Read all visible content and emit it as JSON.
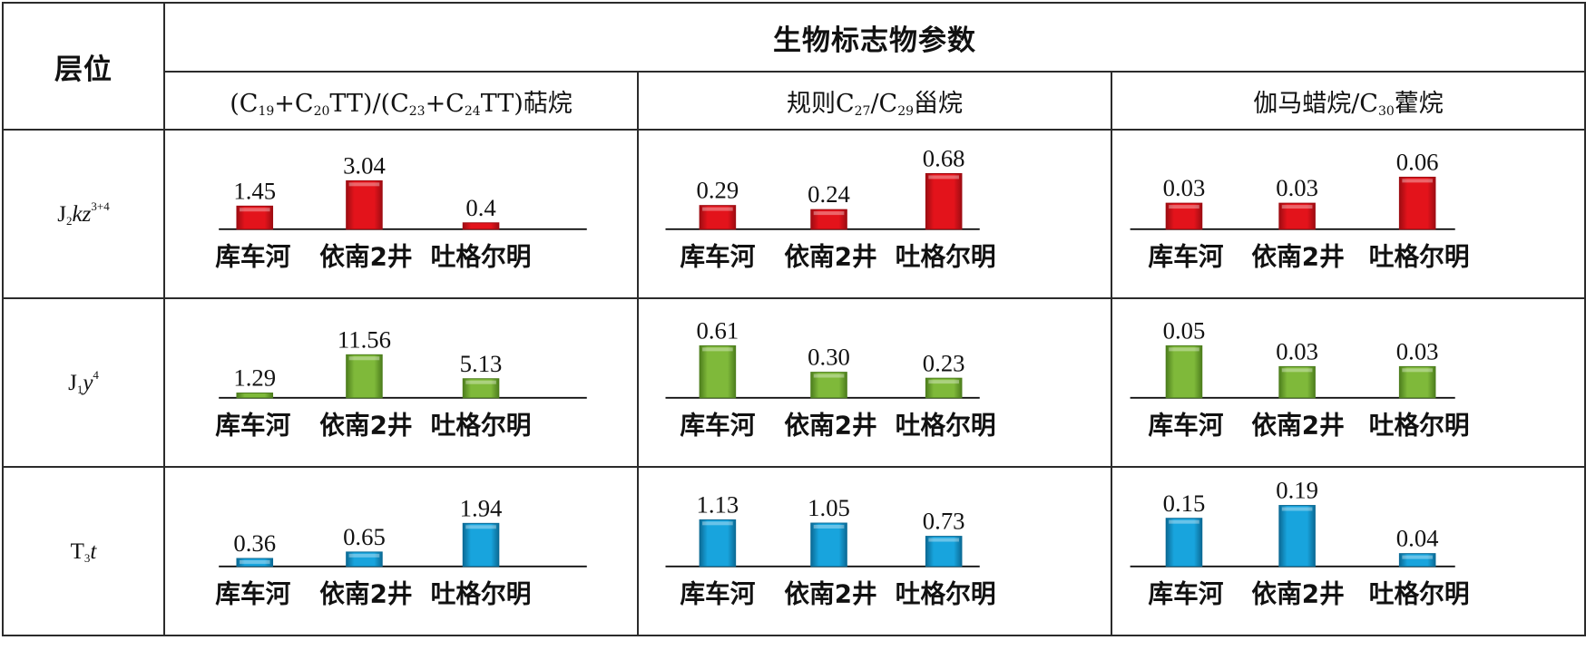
{
  "header": {
    "layer_label": "层位",
    "group_title": "生物标志物参数"
  },
  "columns": [
    {
      "key": "tricyclic_ratio",
      "label_parts": [
        "(C",
        "19",
        "+C",
        "20",
        "TT)/(C",
        "23",
        "+C",
        "24",
        "TT)萜烷"
      ]
    },
    {
      "key": "sterane_ratio",
      "label_parts": [
        "规则C",
        "27",
        "/C",
        "29",
        "甾烷"
      ]
    },
    {
      "key": "gammacerane_ratio",
      "label_parts": [
        "伽马蜡烷/C",
        "30",
        "藿烷"
      ]
    }
  ],
  "rows": [
    {
      "key": "J2kz",
      "label": {
        "main": "J",
        "sub": "2",
        "italic": "kz",
        "sup": "3+4"
      },
      "color": "#e3131b"
    },
    {
      "key": "J1y",
      "label": {
        "main": "J",
        "sub": "1",
        "italic": "y",
        "sup": "4"
      },
      "color": "#7fb93a"
    },
    {
      "key": "T3t",
      "label": {
        "main": "T",
        "sub": "3",
        "italic": "t",
        "sup": ""
      },
      "color": "#18a4dd"
    }
  ],
  "chart_data": [
    {
      "type": "bar",
      "layer": "J2kz3+4",
      "parameter": "(C19+C20TT)/(C23+C24TT)萜烷",
      "categories": [
        "库车河",
        "依南2井",
        "吐格尔明"
      ],
      "values": [
        1.45,
        3.04,
        0.4
      ],
      "labels": [
        "1.45",
        "3.04",
        "0.4"
      ],
      "color": "#e3131b"
    },
    {
      "type": "bar",
      "layer": "J2kz3+4",
      "parameter": "规则C27/C29甾烷",
      "categories": [
        "库车河",
        "依南2井",
        "吐格尔明"
      ],
      "values": [
        0.29,
        0.24,
        0.68
      ],
      "labels": [
        "0.29",
        "0.24",
        "0.68"
      ],
      "color": "#e3131b"
    },
    {
      "type": "bar",
      "layer": "J2kz3+4",
      "parameter": "伽马蜡烷/C30藿烷",
      "categories": [
        "库车河",
        "依南2井",
        "吐格尔明"
      ],
      "values": [
        0.03,
        0.03,
        0.06
      ],
      "labels": [
        "0.03",
        "0.03",
        "0.06"
      ],
      "color": "#e3131b"
    },
    {
      "type": "bar",
      "layer": "J1y4",
      "parameter": "(C19+C20TT)/(C23+C24TT)萜烷",
      "categories": [
        "库车河",
        "依南2井",
        "吐格尔明"
      ],
      "values": [
        1.29,
        11.56,
        5.13
      ],
      "labels": [
        "1.29",
        "11.56",
        "5.13"
      ],
      "color": "#7fb93a"
    },
    {
      "type": "bar",
      "layer": "J1y4",
      "parameter": "规则C27/C29甾烷",
      "categories": [
        "库车河",
        "依南2井",
        "吐格尔明"
      ],
      "values": [
        0.61,
        0.3,
        0.23
      ],
      "labels": [
        "0.61",
        "0.30",
        "0.23"
      ],
      "color": "#7fb93a"
    },
    {
      "type": "bar",
      "layer": "J1y4",
      "parameter": "伽马蜡烷/C30藿烷",
      "categories": [
        "库车河",
        "依南2井",
        "吐格尔明"
      ],
      "values": [
        0.05,
        0.03,
        0.03
      ],
      "labels": [
        "0.05",
        "0.03",
        "0.03"
      ],
      "color": "#7fb93a"
    },
    {
      "type": "bar",
      "layer": "T3t",
      "parameter": "(C19+C20TT)/(C23+C24TT)萜烷",
      "categories": [
        "库车河",
        "依南2井",
        "吐格尔明"
      ],
      "values": [
        0.36,
        0.65,
        1.94
      ],
      "labels": [
        "0.36",
        "0.65",
        "1.94"
      ],
      "color": "#18a4dd"
    },
    {
      "type": "bar",
      "layer": "T3t",
      "parameter": "规则C27/C29甾烷",
      "categories": [
        "库车河",
        "依南2井",
        "吐格尔明"
      ],
      "values": [
        1.13,
        1.05,
        0.73
      ],
      "labels": [
        "1.13",
        "1.05",
        "0.73"
      ],
      "color": "#18a4dd"
    },
    {
      "type": "bar",
      "layer": "T3t",
      "parameter": "伽马蜡烷/C30藿烷",
      "categories": [
        "库车河",
        "依南2井",
        "吐格尔明"
      ],
      "values": [
        0.15,
        0.19,
        0.04
      ],
      "labels": [
        "0.15",
        "0.19",
        "0.04"
      ],
      "color": "#18a4dd"
    }
  ]
}
